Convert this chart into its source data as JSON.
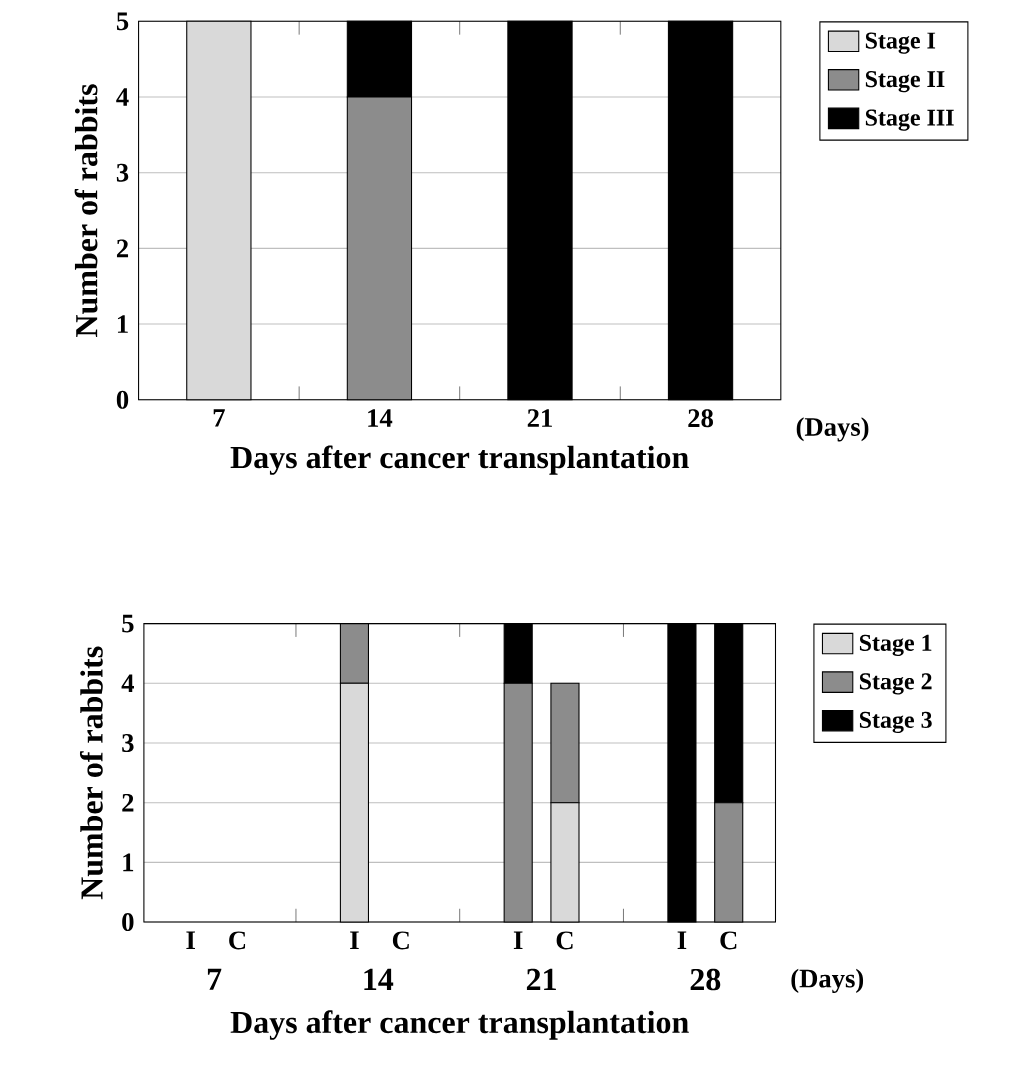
{
  "chart_data": [
    {
      "type": "bar",
      "stacked": true,
      "categories": [
        "7",
        "14",
        "21",
        "28"
      ],
      "xlabel": "Days after cancer transplantation",
      "ylabel": "Number of rabbits",
      "ylim": [
        0,
        5
      ],
      "yticks": [
        0,
        1,
        2,
        3,
        4,
        5
      ],
      "grid": "y",
      "legend": "top right",
      "annotations": [
        "(Days)"
      ],
      "series": [
        {
          "name": "Stage I",
          "color": "#d9d9d9",
          "values": [
            5,
            0,
            0,
            0
          ]
        },
        {
          "name": "Stage II",
          "color": "#8c8c8c",
          "values": [
            0,
            4,
            0,
            0
          ]
        },
        {
          "name": "Stage III",
          "color": "#000000",
          "values": [
            0,
            1,
            5,
            5
          ]
        }
      ]
    },
    {
      "type": "bar",
      "stacked": true,
      "categories": [
        "I",
        "C",
        "I",
        "C",
        "I",
        "C",
        "I",
        "C"
      ],
      "xlabel": "Days after cancer transplantation",
      "ylabel": "Number of rabbits",
      "ylim": [
        0,
        5
      ],
      "yticks": [
        0,
        1,
        2,
        3,
        4,
        5
      ],
      "grid": "y",
      "legend": "top right",
      "annotations": [
        "7",
        "14",
        "21",
        "28",
        "(Days)"
      ],
      "series": [
        {
          "name": "Stage 1",
          "color": "#d9d9d9",
          "values": [
            0,
            0,
            4,
            0,
            0,
            2,
            0,
            0
          ]
        },
        {
          "name": "Stage 2",
          "color": "#8c8c8c",
          "values": [
            0,
            0,
            1,
            0,
            4,
            2,
            0,
            2
          ]
        },
        {
          "name": "Stage 3",
          "color": "#000000",
          "values": [
            0,
            0,
            0,
            0,
            1,
            0,
            5,
            3
          ]
        }
      ]
    }
  ]
}
